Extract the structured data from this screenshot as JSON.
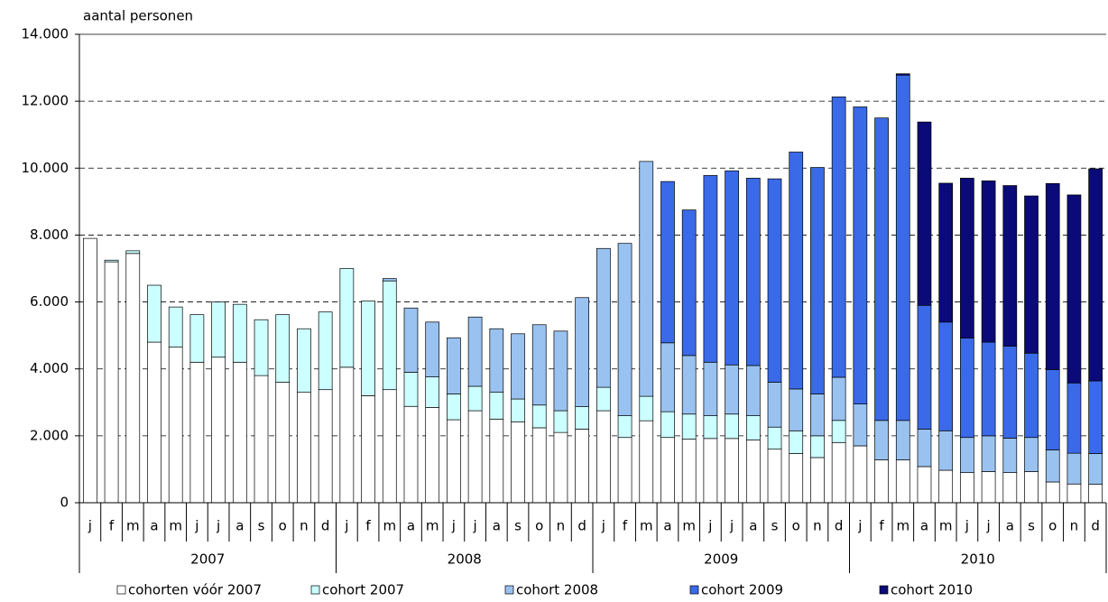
{
  "chart_data": {
    "type": "stacked_bar",
    "y_axis_label": "aantal personen",
    "categories": [
      "j",
      "f",
      "m",
      "a",
      "m",
      "j",
      "j",
      "a",
      "s",
      "o",
      "n",
      "d",
      "j",
      "f",
      "m",
      "a",
      "m",
      "j",
      "j",
      "a",
      "s",
      "o",
      "n",
      "d",
      "j",
      "f",
      "m",
      "a",
      "m",
      "j",
      "j",
      "a",
      "s",
      "o",
      "n",
      "d",
      "j",
      "f",
      "m",
      "a",
      "m",
      "j",
      "j",
      "a",
      "s",
      "o",
      "n",
      "d"
    ],
    "groups": [
      "2007",
      "2008",
      "2009",
      "2010"
    ],
    "ylim": [
      0,
      14000
    ],
    "yticks": [
      0,
      {
        "value": 2000,
        "label": "2.000"
      },
      {
        "value": 4000,
        "label": "4.000"
      },
      {
        "value": 6000,
        "label": "6.000"
      },
      {
        "value": 8000,
        "label": "8.000"
      },
      {
        "value": 10000,
        "label": "10.000"
      },
      {
        "value": 12000,
        "label": "12.000"
      },
      {
        "value": 14000,
        "label": "14.000"
      }
    ],
    "grid": true,
    "series": [
      {
        "name": "cohorten vóór 2007",
        "color": "#ffffff",
        "values": [
          7900,
          7200,
          7450,
          4800,
          4650,
          4200,
          4350,
          4200,
          3800,
          3600,
          3300,
          3380,
          4050,
          3200,
          3380,
          2880,
          2850,
          2480,
          2750,
          2500,
          2420,
          2240,
          2100,
          2200,
          2750,
          1950,
          2450,
          1950,
          1900,
          1920,
          1920,
          1880,
          1600,
          1470,
          1350,
          1800,
          1700,
          1280,
          1280,
          1080,
          970,
          900,
          930,
          900,
          930,
          620,
          560,
          550
        ]
      },
      {
        "name": "cohort 2007",
        "color": "#ccffff",
        "values": [
          null,
          50,
          80,
          1700,
          1200,
          1420,
          1650,
          1730,
          1670,
          2020,
          1900,
          2320,
          2950,
          2830,
          3250,
          1020,
          910,
          770,
          730,
          800,
          680,
          680,
          650,
          670,
          700,
          650,
          730,
          770,
          750,
          680,
          730,
          720,
          660,
          680,
          650,
          660,
          null,
          null,
          null,
          null,
          null,
          null,
          null,
          null,
          null,
          null,
          null,
          null
        ]
      },
      {
        "name": "cohort 2008",
        "color": "#99c2f0",
        "values": [
          null,
          null,
          null,
          null,
          null,
          null,
          null,
          null,
          null,
          null,
          null,
          null,
          null,
          null,
          70,
          1920,
          1640,
          1680,
          2070,
          1900,
          1950,
          2400,
          2380,
          3260,
          4150,
          5150,
          7020,
          2060,
          1750,
          1600,
          1470,
          1500,
          1340,
          1250,
          1250,
          1290,
          1250,
          1180,
          1180,
          1120,
          1180,
          1050,
          1070,
          1030,
          1020,
          960,
          920,
          920
        ]
      },
      {
        "name": "cohort 2009",
        "color": "#3a6ae8",
        "values": [
          null,
          null,
          null,
          null,
          null,
          null,
          null,
          null,
          null,
          null,
          null,
          null,
          null,
          null,
          null,
          null,
          null,
          null,
          null,
          null,
          null,
          null,
          null,
          null,
          null,
          null,
          null,
          4820,
          4350,
          5580,
          5800,
          5600,
          6080,
          7080,
          6770,
          8380,
          8880,
          9040,
          10320,
          3700,
          3250,
          2970,
          2800,
          2750,
          2520,
          2400,
          2100,
          2170
        ]
      },
      {
        "name": "cohort 2010",
        "color": "#0a0a78",
        "values": [
          null,
          null,
          null,
          null,
          null,
          null,
          null,
          null,
          null,
          null,
          null,
          null,
          null,
          null,
          null,
          null,
          null,
          null,
          null,
          null,
          null,
          null,
          null,
          null,
          null,
          null,
          null,
          null,
          null,
          null,
          null,
          null,
          null,
          null,
          null,
          null,
          null,
          null,
          40,
          5480,
          4150,
          4780,
          4820,
          4800,
          4700,
          5560,
          5620,
          6340
        ]
      }
    ]
  }
}
